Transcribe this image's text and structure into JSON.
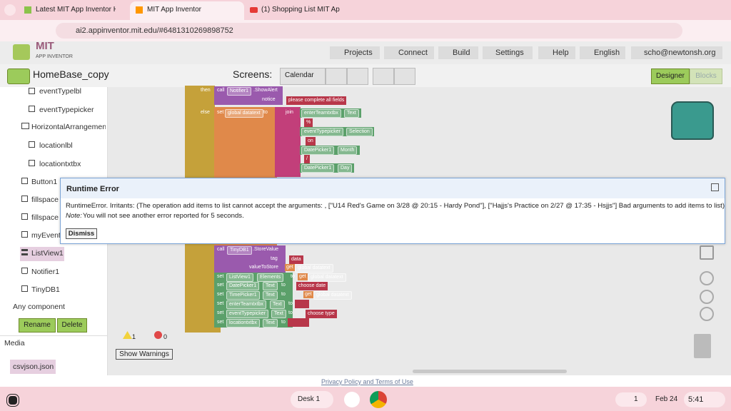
{
  "tabs": [
    "Latest MIT App Inventor Help to",
    "MIT App Inventor",
    "(1) Shopping List MIT App Inven"
  ],
  "url": "ai2.appinventor.mit.edu/#6481310269898752",
  "logo": {
    "title": "MIT",
    "subtitle": "APP INVENTOR"
  },
  "menu": [
    "Projects",
    "Connect",
    "Build",
    "Settings",
    "Help",
    "English",
    "scho@newtonsh.org"
  ],
  "toolbar": {
    "project": "HomeBase_copy",
    "screens_label": "Screens:",
    "screen": "Calendar",
    "designer": "Designer",
    "blocks": "Blocks"
  },
  "components": [
    "eventTypelbl",
    "eventTypepicker",
    "HorizontalArrangemen",
    "locationlbl",
    "locationtxtbx",
    "Button1",
    "fillspace",
    "fillspace",
    "myEvent",
    "ListView1",
    "Notifier1",
    "TinyDB1"
  ],
  "any_component": "Any component",
  "component_buttons": [
    "Rename",
    "Delete"
  ],
  "media": {
    "title": "Media",
    "files": [
      "csvjson.json"
    ]
  },
  "blocks": {
    "rows": [
      [
        "then",
        "call",
        "Notifier1",
        ".ShowAlert"
      ],
      [
        "notice",
        "please complete all fields"
      ],
      [
        "else",
        "set",
        "global datatext",
        "to",
        "join",
        "enterTeamtxtbx",
        "Text"
      ],
      [
        "%"
      ],
      [
        "eventTypepicker",
        "Selection"
      ],
      [
        "on"
      ],
      [
        "DatePicker1",
        "Month"
      ],
      [
        "/"
      ],
      [
        "DatePicker1",
        "Day"
      ],
      [
        "call",
        "TinyDB1",
        ".StoreValue"
      ],
      [
        "tag",
        "data"
      ],
      [
        "valueToStore",
        "get",
        "global datatext"
      ],
      [
        "set",
        "ListView1",
        "Elements",
        "to",
        "get",
        "global datatext"
      ],
      [
        "set",
        "DatePicker1",
        "Text",
        "to",
        "choose date"
      ],
      [
        "set",
        "TimePicker1",
        "Text",
        "to",
        "get",
        "global datatext"
      ],
      [
        "set",
        "enterTeamtxtbx",
        "Text",
        "to"
      ],
      [
        "set",
        "eventTypepicker",
        "Text",
        "to",
        "choose type"
      ],
      [
        "set",
        "locationtxtbx",
        "Text",
        "to"
      ]
    ]
  },
  "warnings": {
    "warning_count": 1,
    "error_count": 0,
    "button": "Show Warnings"
  },
  "dialog": {
    "title": "Runtime Error",
    "message": "RuntimeError. Irritants: (The operation add items to list cannot accept the arguments: , [\"U14 Red's Game on 3/28 @ 20:15 - Hardy Pond\"], [\"Hajjs's Practice on 2/27 @ 17:35 - Hsjjs\"] Bad arguments to add items to list)",
    "note_label": "Note:",
    "note": "You will not see another error reported for 5 seconds.",
    "button": "Dismiss"
  },
  "footer": "Privacy Policy and Terms of Use",
  "taskbar": {
    "desk": "Desk 1",
    "notifications": 1,
    "date": "Feb 24",
    "time": "5:41"
  }
}
